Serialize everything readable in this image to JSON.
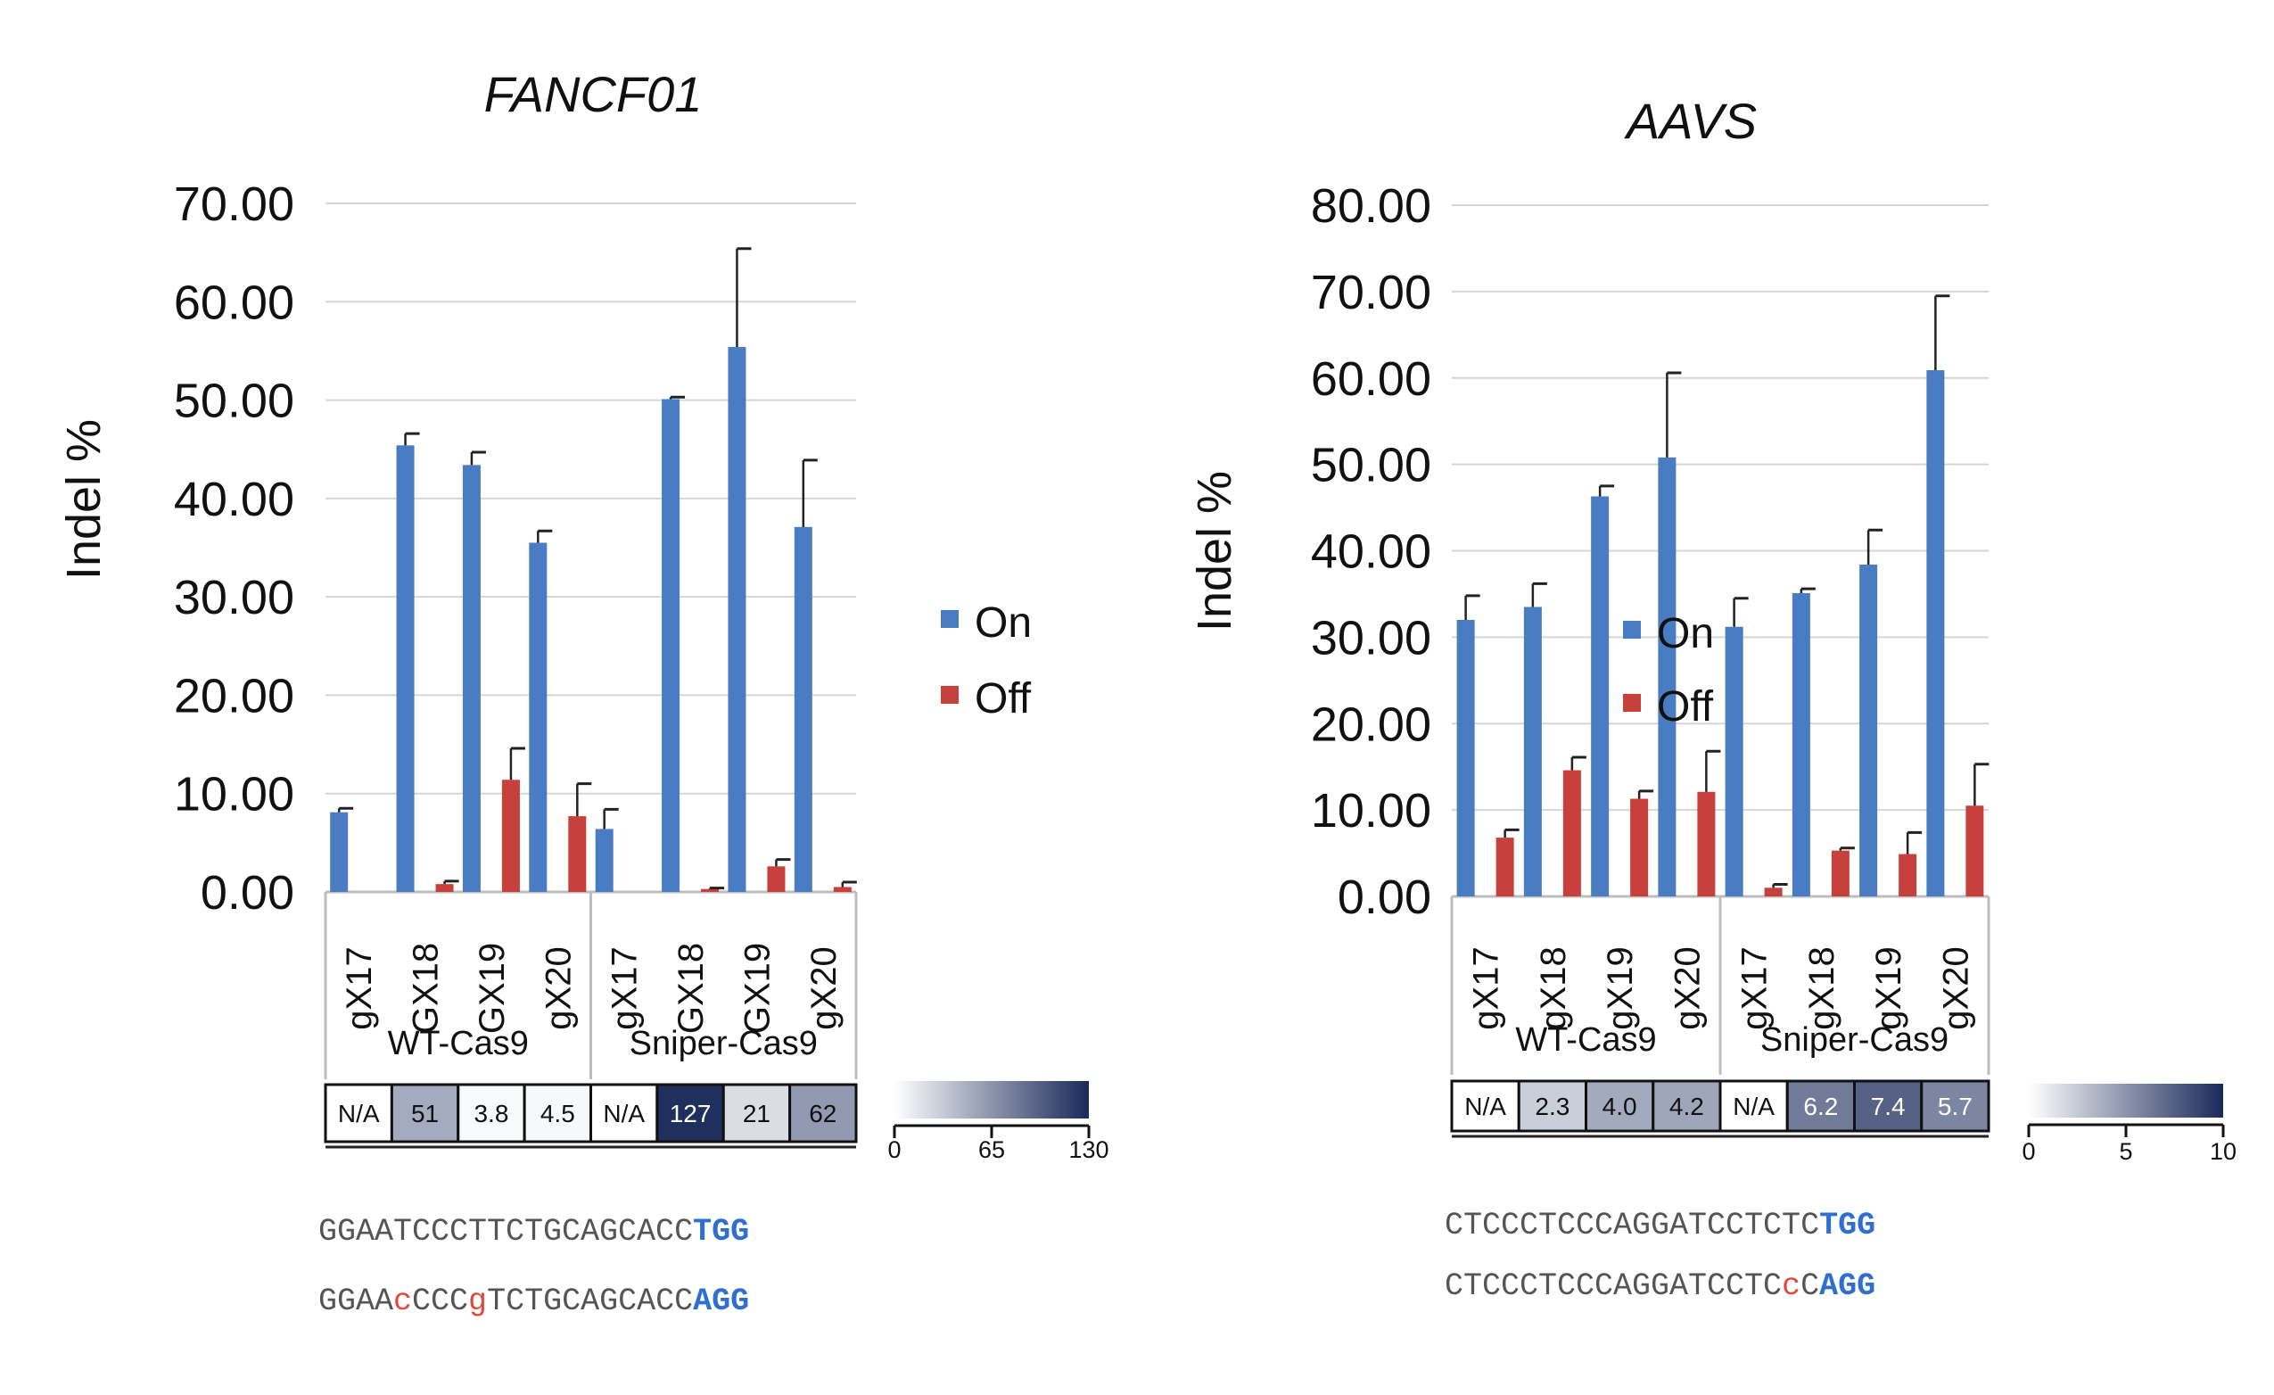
{
  "chart_data": [
    {
      "type": "bar",
      "title": "FANCF01",
      "ylabel": "Indel %",
      "ylim": [
        0,
        70
      ],
      "yticks": [
        "0.00",
        "10.00",
        "20.00",
        "30.00",
        "40.00",
        "50.00",
        "60.00",
        "70.00"
      ],
      "categories": [
        "gX17",
        "GX18",
        "GX19",
        "gX20",
        "gX17",
        "GX18",
        "GX19",
        "gX20"
      ],
      "groups": [
        {
          "label": "WT-Cas9",
          "count": 4
        },
        {
          "label": "Sniper-Cas9",
          "count": 4
        }
      ],
      "series": [
        {
          "name": "On",
          "color": "#4a7cc4",
          "values": [
            8.1,
            45.4,
            43.4,
            35.5,
            6.4,
            50.1,
            55.4,
            37.1
          ],
          "errors": [
            0.4,
            1.2,
            1.3,
            1.2,
            2.0,
            0.2,
            10.0,
            6.8
          ]
        },
        {
          "name": "Off",
          "color": "#c8403b",
          "values": [
            0,
            0.8,
            11.4,
            7.7,
            0,
            0.3,
            2.6,
            0.5
          ],
          "errors": [
            0,
            0.3,
            3.2,
            3.3,
            0,
            0.1,
            0.7,
            0.5
          ]
        }
      ],
      "legend": {
        "position": "right",
        "entries": [
          "On",
          "Off"
        ]
      },
      "ratio_row": {
        "labels": [
          "N/A",
          "51",
          "3.8",
          "4.5",
          "N/A",
          "127",
          "21",
          "62"
        ],
        "values": [
          null,
          51,
          3.8,
          4.5,
          null,
          127,
          21,
          62
        ]
      },
      "colorbar": {
        "min": 0,
        "max": 130,
        "ticks": [
          "0",
          "65",
          "130"
        ],
        "low_color": "#ffffff",
        "high_color": "#1a2a5a"
      },
      "sequences": [
        [
          {
            "t": "GGAATCCCT",
            "c": "#555555"
          },
          {
            "t": "TCTGCAGCACC",
            "c": "#555555"
          },
          {
            "t": "TGG",
            "c": "#2f6fcf",
            "b": true
          }
        ],
        [
          {
            "t": "GGAA",
            "c": "#555555"
          },
          {
            "t": "c",
            "c": "#e04a3a"
          },
          {
            "t": "CCC",
            "c": "#555555"
          },
          {
            "t": "g",
            "c": "#e04a3a"
          },
          {
            "t": "TCTGCAGCACC",
            "c": "#555555"
          },
          {
            "t": "AGG",
            "c": "#2f6fcf",
            "b": true
          }
        ]
      ]
    },
    {
      "type": "bar",
      "title": "AAVS",
      "ylabel": "Indel %",
      "ylim": [
        0,
        80
      ],
      "yticks": [
        "0.00",
        "10.00",
        "20.00",
        "30.00",
        "40.00",
        "50.00",
        "60.00",
        "70.00",
        "80.00"
      ],
      "categories": [
        "gX17",
        "gX18",
        "gX19",
        "gX20",
        "gX17",
        "gX18",
        "gX19",
        "gX20"
      ],
      "groups": [
        {
          "label": "WT-Cas9",
          "count": 4
        },
        {
          "label": "Sniper-Cas9",
          "count": 4
        }
      ],
      "series": [
        {
          "name": "On",
          "color": "#4a7cc4",
          "values": [
            32.0,
            33.5,
            46.3,
            50.8,
            31.2,
            35.1,
            38.4,
            60.9
          ],
          "errors": [
            2.8,
            2.7,
            1.2,
            9.8,
            3.3,
            0.5,
            4.0,
            8.6
          ]
        },
        {
          "name": "Off",
          "color": "#c8403b",
          "values": [
            6.8,
            14.6,
            11.3,
            12.1,
            1.0,
            5.3,
            4.9,
            10.5
          ],
          "errors": [
            0.9,
            1.5,
            0.9,
            4.7,
            0.4,
            0.3,
            2.5,
            4.8
          ]
        }
      ],
      "legend": {
        "position": "right",
        "entries": [
          "On",
          "Off"
        ]
      },
      "ratio_row": {
        "labels": [
          "N/A",
          "2.3",
          "4.0",
          "4.2",
          "N/A",
          "6.2",
          "7.4",
          "5.7"
        ],
        "values": [
          null,
          2.3,
          4.0,
          4.2,
          null,
          6.2,
          7.4,
          5.7
        ]
      },
      "colorbar": {
        "min": 0,
        "max": 10,
        "ticks": [
          "0",
          "5",
          "10"
        ],
        "low_color": "#ffffff",
        "high_color": "#1a2a5a"
      },
      "sequences": [
        [
          {
            "t": "CTCCCTCCCAGGATCCTCTC",
            "c": "#555555"
          },
          {
            "t": "TGG",
            "c": "#2f6fcf",
            "b": true
          }
        ],
        [
          {
            "t": "CTCCCTCCCAGGATCCTC",
            "c": "#555555"
          },
          {
            "t": "c",
            "c": "#e04a3a"
          },
          {
            "t": "C",
            "c": "#555555"
          },
          {
            "t": "AGG",
            "c": "#2f6fcf",
            "b": true
          }
        ]
      ]
    }
  ]
}
